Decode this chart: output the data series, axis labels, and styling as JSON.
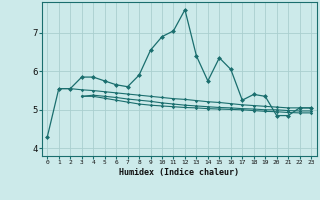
{
  "xlabel": "Humidex (Indice chaleur)",
  "background_color": "#cceaea",
  "grid_color": "#aacfcf",
  "line_color": "#1a6e6e",
  "xlim": [
    -0.5,
    23.5
  ],
  "ylim": [
    3.8,
    7.8
  ],
  "yticks": [
    4,
    5,
    6,
    7
  ],
  "xticks": [
    0,
    1,
    2,
    3,
    4,
    5,
    6,
    7,
    8,
    9,
    10,
    11,
    12,
    13,
    14,
    15,
    16,
    17,
    18,
    19,
    20,
    21,
    22,
    23
  ],
  "series1_x": [
    0,
    1,
    2,
    3,
    4,
    5,
    6,
    7,
    8,
    9,
    10,
    11,
    12,
    13,
    14,
    15,
    16,
    17,
    18,
    19,
    20,
    21,
    22,
    23
  ],
  "series1_y": [
    4.3,
    5.55,
    5.55,
    5.85,
    5.85,
    5.75,
    5.65,
    5.6,
    5.9,
    6.55,
    6.9,
    7.05,
    7.6,
    6.4,
    5.75,
    6.35,
    6.05,
    5.25,
    5.4,
    5.35,
    4.85,
    4.85,
    5.05,
    5.05
  ],
  "series2_x": [
    1,
    2,
    3,
    4,
    5,
    6,
    7,
    8,
    9,
    10,
    11,
    12,
    13,
    14,
    15,
    16,
    17,
    18,
    19,
    20,
    21,
    22,
    23
  ],
  "series2_y": [
    5.55,
    5.55,
    5.52,
    5.5,
    5.47,
    5.44,
    5.41,
    5.38,
    5.35,
    5.32,
    5.29,
    5.27,
    5.24,
    5.21,
    5.19,
    5.16,
    5.13,
    5.11,
    5.09,
    5.07,
    5.05,
    5.05,
    5.05
  ],
  "series3_x": [
    3,
    4,
    5,
    6,
    7,
    8,
    9,
    10,
    11,
    12,
    13,
    14,
    15,
    16,
    17,
    18,
    19,
    20,
    21,
    22,
    23
  ],
  "series3_y": [
    5.35,
    5.35,
    5.3,
    5.25,
    5.2,
    5.15,
    5.12,
    5.1,
    5.08,
    5.06,
    5.05,
    5.03,
    5.02,
    5.01,
    5.0,
    4.98,
    4.96,
    4.95,
    4.93,
    4.92,
    4.92
  ],
  "series4_x": [
    3,
    4,
    5,
    6,
    7,
    8,
    9,
    10,
    11,
    12,
    13,
    14,
    15,
    16,
    17,
    18,
    19,
    20,
    21,
    22,
    23
  ],
  "series4_y": [
    5.35,
    5.38,
    5.35,
    5.32,
    5.28,
    5.25,
    5.22,
    5.18,
    5.15,
    5.12,
    5.1,
    5.08,
    5.06,
    5.05,
    5.03,
    5.02,
    5.0,
    5.0,
    4.98,
    4.97,
    4.97
  ]
}
